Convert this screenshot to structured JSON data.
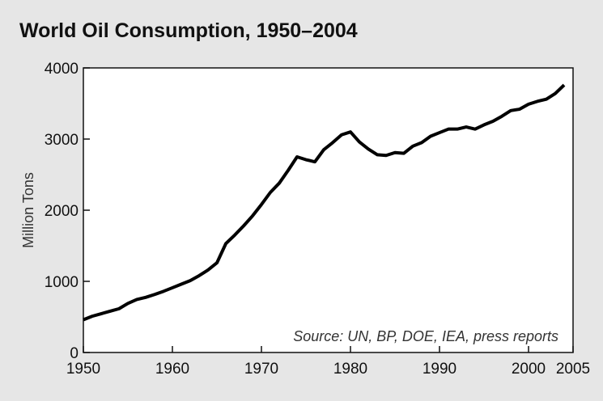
{
  "chart_data": {
    "type": "line",
    "title": "World Oil Consumption, 1950–2004",
    "y_label": "Million Tons",
    "annotation": "Source: UN, BP, DOE, IEA, press reports",
    "x": [
      1950,
      1951,
      1952,
      1953,
      1954,
      1955,
      1956,
      1957,
      1958,
      1959,
      1960,
      1961,
      1962,
      1963,
      1964,
      1965,
      1966,
      1967,
      1968,
      1969,
      1970,
      1971,
      1972,
      1973,
      1974,
      1975,
      1976,
      1977,
      1978,
      1979,
      1980,
      1981,
      1982,
      1983,
      1984,
      1985,
      1986,
      1987,
      1988,
      1989,
      1990,
      1991,
      1992,
      1993,
      1994,
      1995,
      1996,
      1997,
      1998,
      1999,
      2000,
      2001,
      2002,
      2003,
      2004
    ],
    "series": [
      {
        "name": "World Oil Consumption",
        "color": "#000000",
        "values": [
          460,
          510,
          545,
          580,
          615,
          690,
          745,
          775,
          815,
          860,
          910,
          960,
          1010,
          1080,
          1160,
          1260,
          1530,
          1650,
          1780,
          1920,
          2080,
          2250,
          2380,
          2560,
          2750,
          2710,
          2680,
          2850,
          2950,
          3060,
          3100,
          2960,
          2860,
          2780,
          2770,
          2810,
          2800,
          2900,
          2950,
          3040,
          3090,
          3140,
          3140,
          3170,
          3140,
          3200,
          3250,
          3320,
          3400,
          3420,
          3490,
          3530,
          3560,
          3640,
          3760
        ]
      }
    ],
    "xlim": [
      1950,
      2005
    ],
    "xticks": [
      1950,
      1960,
      1970,
      1980,
      1990,
      2000,
      2005
    ],
    "ylim": [
      0,
      4000
    ],
    "yticks": [
      0,
      1000,
      2000,
      3000,
      4000
    ]
  }
}
